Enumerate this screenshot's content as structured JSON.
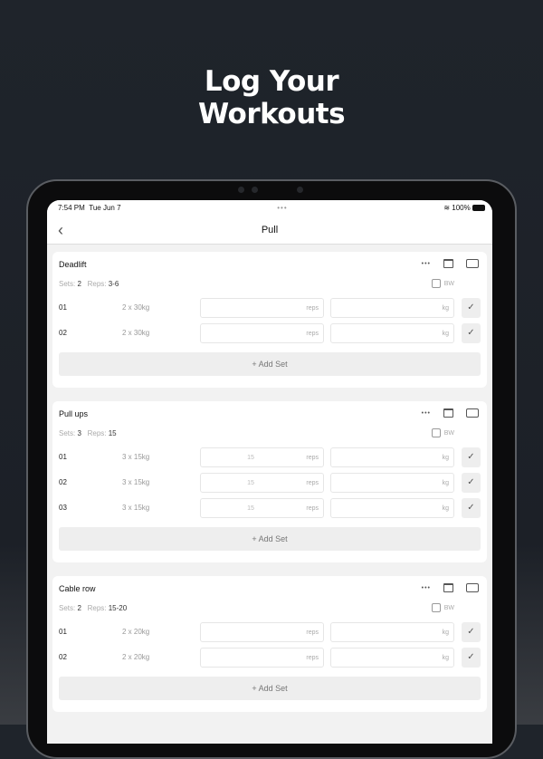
{
  "headline": [
    "Log Your",
    "Workouts"
  ],
  "status": {
    "time": "7:54 PM",
    "date": "Tue Jun 7",
    "dots": "•••",
    "battery": "100%"
  },
  "nav": {
    "title": "Pull",
    "back": "‹"
  },
  "labels": {
    "sets": "Sets:",
    "reps": "Reps:",
    "bw": "BW",
    "reps_unit": "reps",
    "kg_unit": "kg",
    "add_set": "+ Add Set",
    "more": "•••",
    "check": "✓"
  },
  "exercises": [
    {
      "name": "Deadlift",
      "sets": "2",
      "reps": "3-6",
      "rows": [
        {
          "num": "01",
          "target": "2 x 30kg",
          "reps": ""
        },
        {
          "num": "02",
          "target": "2 x 30kg",
          "reps": ""
        }
      ]
    },
    {
      "name": "Pull ups",
      "sets": "3",
      "reps": "15",
      "rows": [
        {
          "num": "01",
          "target": "3 x 15kg",
          "reps": "15"
        },
        {
          "num": "02",
          "target": "3 x 15kg",
          "reps": "15"
        },
        {
          "num": "03",
          "target": "3 x 15kg",
          "reps": "15"
        }
      ]
    },
    {
      "name": "Cable row",
      "sets": "2",
      "reps": "15-20",
      "rows": [
        {
          "num": "01",
          "target": "2 x 20kg",
          "reps": ""
        },
        {
          "num": "02",
          "target": "2 x 20kg",
          "reps": ""
        }
      ]
    }
  ]
}
